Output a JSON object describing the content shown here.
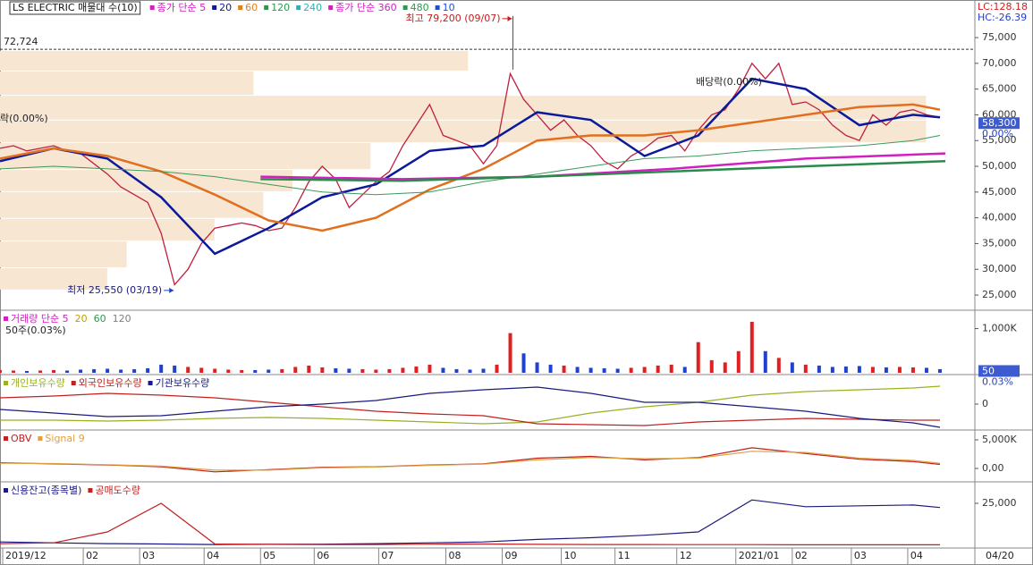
{
  "chart_data": [
    {
      "type": "line",
      "title": "LS ELECTRIC 매물대 수(10)",
      "legend": [
        {
          "label": "종가 단순 5",
          "color": "#d020c0"
        },
        {
          "label": "20",
          "color": "#0a1a9a"
        },
        {
          "label": "60",
          "color": "#e08020"
        },
        {
          "label": "120",
          "color": "#2a9a4a"
        },
        {
          "label": "240",
          "color": "#30b0b0"
        },
        {
          "label": "종가 단순 360",
          "color": "#d020c0"
        },
        {
          "label": "480",
          "color": "#2a9a4a"
        },
        {
          "label": "10",
          "color": "#1a50d0"
        }
      ],
      "xlim": [
        0,
        363
      ],
      "xticks": [
        {
          "value": 1,
          "label": "2019/12"
        },
        {
          "value": 31,
          "label": "02"
        },
        {
          "value": 52,
          "label": "03"
        },
        {
          "value": 76,
          "label": "04"
        },
        {
          "value": 97,
          "label": "05"
        },
        {
          "value": 117,
          "label": "06"
        },
        {
          "value": 141,
          "label": "07"
        },
        {
          "value": 166,
          "label": "08"
        },
        {
          "value": 187,
          "label": "09"
        },
        {
          "value": 209,
          "label": "10"
        },
        {
          "value": 229,
          "label": "11"
        },
        {
          "value": 252,
          "label": "12"
        },
        {
          "value": 274,
          "label": "2021/01"
        },
        {
          "value": 295,
          "label": "02"
        },
        {
          "value": 317,
          "label": "03"
        },
        {
          "value": 338,
          "label": "04"
        }
      ],
      "end_date": "04/20",
      "ylim": [
        22400,
        82300
      ],
      "yticks": [
        {
          "value": 25000,
          "label": "25,000"
        },
        {
          "value": 30000,
          "label": "30,000"
        },
        {
          "value": 35000,
          "label": "35,000"
        },
        {
          "value": 40000,
          "label": "40,000"
        },
        {
          "value": 45000,
          "label": "45,000"
        },
        {
          "value": 50000,
          "label": "50,000"
        },
        {
          "value": 55000,
          "label": "55,000"
        },
        {
          "value": 60000,
          "label": "60,000"
        },
        {
          "value": 65000,
          "label": "65,000"
        },
        {
          "value": 70000,
          "label": "70,000"
        },
        {
          "value": 75000,
          "label": "75,000"
        }
      ],
      "volume_profile": {
        "color": "#f7e6d2",
        "bins": [
          72400,
          68400,
          63700,
          58900,
          54500,
          49300,
          45000,
          39800,
          35400,
          30200,
          25900
        ],
        "values": [
          48,
          26,
          95,
          95,
          38,
          30,
          27,
          22,
          13,
          11
        ]
      },
      "reference_line": {
        "value": 72724,
        "label": "72,724"
      },
      "high": {
        "label": "최고 79,200 (09/07)",
        "value": 79200,
        "x": 191
      },
      "low": {
        "label": "최저 25,550 (03/19)",
        "value": 25550,
        "x": 65
      },
      "last": {
        "value": 58300,
        "label": "58,300",
        "change": "0.00%"
      },
      "lc": "LC:128.18",
      "hc": "HC:-26.39",
      "events": [
        "배당락(0.00%)",
        "락(0.00%)"
      ],
      "series": [
        {
          "color": "#c02040",
          "x": [
            0,
            5,
            10,
            15,
            20,
            25,
            30,
            35,
            40,
            45,
            50,
            55,
            60,
            65,
            70,
            75,
            80,
            85,
            90,
            95,
            100,
            105,
            110,
            115,
            120,
            125,
            130,
            135,
            140,
            145,
            150,
            155,
            160,
            165,
            170,
            175,
            180,
            185,
            190,
            195,
            200,
            205,
            210,
            215,
            220,
            225,
            230,
            235,
            240,
            245,
            250,
            255,
            260,
            265,
            270,
            275,
            280,
            285,
            290,
            295,
            300,
            305,
            310,
            315,
            320,
            325,
            330,
            335,
            340,
            345,
            350
          ],
          "values": [
            53500,
            54000,
            53000,
            53500,
            54000,
            53000,
            52500,
            50500,
            48500,
            46000,
            44500,
            43000,
            37000,
            27000,
            30000,
            35000,
            38000,
            38500,
            39000,
            38500,
            37500,
            38000,
            42000,
            47000,
            50000,
            47500,
            42000,
            44500,
            47000,
            49000,
            54000,
            58000,
            62000,
            56000,
            55000,
            54000,
            50500,
            54000,
            68000,
            63000,
            60000,
            57000,
            59000,
            56000,
            54000,
            51000,
            49500,
            52000,
            53500,
            55500,
            56000,
            53000,
            57000,
            60000,
            61000,
            65000,
            70000,
            67000,
            70000,
            62000,
            62500,
            61000,
            58000,
            56000,
            55000,
            60000,
            58000,
            60500,
            61000,
            60000,
            59500
          ]
        },
        {
          "color": "#0a1a9a",
          "x": [
            0,
            20,
            40,
            60,
            80,
            100,
            120,
            140,
            160,
            180,
            200,
            220,
            240,
            260,
            280,
            300,
            320,
            340,
            350
          ],
          "values": [
            51000,
            53500,
            51500,
            44000,
            33000,
            38000,
            44000,
            46500,
            53000,
            54000,
            60500,
            59000,
            52000,
            56000,
            67000,
            65000,
            58000,
            60000,
            59500
          ]
        },
        {
          "color": "#e07020",
          "x": [
            0,
            20,
            40,
            60,
            80,
            100,
            120,
            140,
            160,
            180,
            200,
            220,
            240,
            260,
            280,
            300,
            320,
            340,
            350
          ],
          "values": [
            51500,
            53500,
            52000,
            49000,
            44500,
            39500,
            37500,
            40000,
            45500,
            49500,
            55000,
            56000,
            56000,
            57000,
            58500,
            60000,
            61500,
            62000,
            61000
          ]
        },
        {
          "color": "#3a9a5a",
          "x": [
            0,
            20,
            40,
            60,
            80,
            100,
            120,
            140,
            160,
            180,
            200,
            220,
            240,
            260,
            280,
            300,
            320,
            340,
            350
          ],
          "values": [
            49500,
            50000,
            49500,
            49000,
            48000,
            46500,
            45000,
            44500,
            45000,
            47000,
            48500,
            50000,
            51500,
            52000,
            53000,
            53500,
            54000,
            55000,
            56000
          ]
        },
        {
          "color": "#d020c0",
          "x": [
            97,
            150,
            200,
            250,
            300,
            352
          ],
          "values": [
            48000,
            47500,
            48000,
            49500,
            51500,
            52500
          ]
        },
        {
          "color": "#2a8a4a",
          "x": [
            97,
            150,
            200,
            250,
            300,
            352
          ],
          "values": [
            47500,
            47200,
            48000,
            49000,
            50000,
            51000
          ]
        }
      ]
    },
    {
      "type": "bar",
      "legend": [
        {
          "label": "거래량 단순 5",
          "color": "#d020c0"
        },
        {
          "label": "20",
          "color": "#c0a000"
        },
        {
          "label": "60",
          "color": "#2a9a4a"
        },
        {
          "label": "120",
          "color": "#808080"
        }
      ],
      "subtitle": "50주(0.03%)",
      "last": {
        "value": 50,
        "label": "50",
        "change": "0.03%"
      },
      "up_color": "#e02020",
      "down_color": "#2040d0",
      "ylim": [
        0,
        1388
      ],
      "yticks": [
        {
          "value": 1000,
          "label": "1,000K"
        }
      ],
      "series": [
        {
          "x": [
            0,
            5,
            10,
            15,
            20,
            25,
            30,
            35,
            40,
            45,
            50,
            55,
            60,
            65,
            70,
            75,
            80,
            85,
            90,
            95,
            100,
            105,
            110,
            115,
            120,
            125,
            130,
            135,
            140,
            145,
            150,
            155,
            160,
            165,
            170,
            175,
            180,
            185,
            190,
            195,
            200,
            205,
            210,
            215,
            220,
            225,
            230,
            235,
            240,
            245,
            250,
            255,
            260,
            265,
            270,
            275,
            280,
            285,
            290,
            295,
            300,
            305,
            310,
            315,
            320,
            325,
            330,
            335,
            340,
            345,
            350
          ],
          "values": [
            80,
            70,
            60,
            70,
            80,
            70,
            90,
            100,
            110,
            90,
            100,
            120,
            200,
            180,
            150,
            130,
            110,
            90,
            80,
            80,
            90,
            100,
            150,
            180,
            140,
            120,
            110,
            100,
            90,
            100,
            130,
            160,
            200,
            130,
            100,
            90,
            110,
            200,
            900,
            450,
            250,
            200,
            180,
            150,
            130,
            120,
            110,
            130,
            150,
            180,
            200,
            150,
            700,
            300,
            250,
            500,
            1150,
            500,
            350,
            250,
            200,
            180,
            150,
            160,
            170,
            150,
            140,
            150,
            140,
            130,
            100
          ]
        }
      ]
    },
    {
      "type": "line",
      "ylim": [
        -84,
        96
      ],
      "yticks": [
        0
      ],
      "series": [
        {
          "name": "개인보유수량",
          "color": "#9ab020",
          "x": [
            0,
            20,
            40,
            60,
            80,
            100,
            120,
            140,
            160,
            180,
            200,
            220,
            240,
            260,
            280,
            300,
            320,
            340,
            350
          ],
          "values": [
            -54,
            -54,
            -57,
            -54,
            -48,
            -45,
            -48,
            -54,
            -60,
            -66,
            -60,
            -30,
            -9,
            6,
            30,
            42,
            48,
            54,
            60
          ]
        },
        {
          "name": "외국인보유수량",
          "color": "#c02020",
          "x": [
            0,
            20,
            40,
            60,
            80,
            100,
            120,
            140,
            160,
            180,
            200,
            220,
            240,
            260,
            280,
            300,
            320,
            340,
            350
          ],
          "values": [
            21,
            27,
            36,
            30,
            21,
            6,
            -9,
            -24,
            -33,
            -39,
            -66,
            -69,
            -72,
            -60,
            -54,
            -48,
            -51,
            -54,
            -54
          ]
        },
        {
          "name": "기관보유수량",
          "color": "#1a1a80",
          "x": [
            0,
            20,
            40,
            60,
            80,
            100,
            120,
            140,
            160,
            180,
            200,
            220,
            240,
            260,
            280,
            300,
            320,
            340,
            350
          ],
          "values": [
            -18,
            -30,
            -42,
            -39,
            -24,
            -9,
            0,
            12,
            36,
            48,
            57,
            36,
            6,
            6,
            -9,
            -24,
            -48,
            -63,
            -78
          ]
        }
      ]
    },
    {
      "type": "line",
      "ylim": [
        -2190,
        6560
      ],
      "yticks": [
        {
          "value": 5000,
          "label": "5,000K"
        },
        {
          "value": 0,
          "label": "0,00"
        }
      ],
      "series": [
        {
          "name": "OBV",
          "color": "#c02020",
          "x": [
            0,
            20,
            40,
            60,
            80,
            100,
            120,
            140,
            160,
            180,
            200,
            220,
            240,
            260,
            280,
            300,
            320,
            340,
            350
          ],
          "values": [
            1000,
            800,
            600,
            300,
            -600,
            -200,
            200,
            300,
            600,
            800,
            1800,
            2100,
            1500,
            1900,
            3600,
            2600,
            1600,
            1200,
            700
          ]
        },
        {
          "name": "Signal 9",
          "color": "#e0a040",
          "x": [
            0,
            20,
            40,
            60,
            80,
            100,
            120,
            140,
            160,
            180,
            200,
            220,
            240,
            260,
            280,
            300,
            320,
            340,
            350
          ],
          "values": [
            900,
            850,
            650,
            400,
            -300,
            -300,
            100,
            250,
            550,
            750,
            1500,
            1900,
            1700,
            1800,
            3000,
            2800,
            1800,
            1400,
            900
          ]
        }
      ]
    },
    {
      "type": "line",
      "ylim": [
        -1064,
        37230
      ],
      "yticks": [
        {
          "value": 25000,
          "label": "25,000"
        }
      ],
      "series": [
        {
          "name": "신용잔고(종목별)",
          "color": "#1a1a80",
          "x": [
            0,
            20,
            40,
            60,
            80,
            100,
            120,
            140,
            160,
            180,
            200,
            220,
            240,
            260,
            280,
            300,
            320,
            340,
            350
          ],
          "values": [
            2000,
            1500,
            1000,
            800,
            500,
            600,
            700,
            1000,
            1500,
            2000,
            3500,
            4500,
            6000,
            8000,
            27000,
            23000,
            23500,
            24000,
            22500
          ]
        },
        {
          "name": "공매도수량",
          "color": "#c02020",
          "x": [
            0,
            20,
            40,
            60,
            80,
            100,
            120,
            140,
            160,
            180,
            200,
            220,
            240,
            260,
            280,
            300,
            320,
            340,
            350
          ],
          "values": [
            1000,
            1500,
            8000,
            25000,
            800,
            600,
            500,
            500,
            700,
            800,
            600,
            500,
            500,
            400,
            400,
            300,
            300,
            300,
            300
          ]
        }
      ]
    }
  ]
}
